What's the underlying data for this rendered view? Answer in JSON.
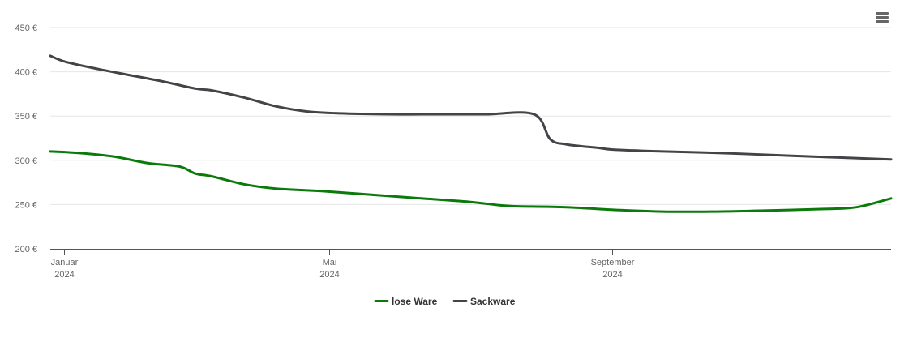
{
  "menu": {
    "icon": "hamburger-menu-icon"
  },
  "chart_data": {
    "type": "line",
    "title": "",
    "xlabel": "",
    "ylabel": "",
    "x_range": [
      "2024-01-01",
      "2024-12-31"
    ],
    "ylim": [
      200,
      450
    ],
    "y_ticks": [
      {
        "value": 200,
        "label": "200 €"
      },
      {
        "value": 250,
        "label": "250 €"
      },
      {
        "value": 300,
        "label": "300 €"
      },
      {
        "value": 350,
        "label": "350 €"
      },
      {
        "value": 400,
        "label": "400 €"
      },
      {
        "value": 450,
        "label": "450 €"
      }
    ],
    "x_ticks": [
      {
        "date": "2024-01-07",
        "month": "Januar",
        "year": "2024"
      },
      {
        "date": "2024-05-01",
        "month": "Mai",
        "year": "2024"
      },
      {
        "date": "2024-09-01",
        "month": "September",
        "year": "2024"
      }
    ],
    "grid": true,
    "legend_position": "bottom-center",
    "series": [
      {
        "name": "lose Ware",
        "color": "#0b7a0b",
        "points": [
          [
            "2024-01-01",
            310
          ],
          [
            "2024-01-15",
            308
          ],
          [
            "2024-01-29",
            304
          ],
          [
            "2024-02-12",
            297
          ],
          [
            "2024-02-26",
            293
          ],
          [
            "2024-03-04",
            285
          ],
          [
            "2024-03-11",
            282
          ],
          [
            "2024-03-25",
            273
          ],
          [
            "2024-04-08",
            268
          ],
          [
            "2024-04-29",
            265
          ],
          [
            "2024-05-20",
            261
          ],
          [
            "2024-06-10",
            257
          ],
          [
            "2024-07-01",
            253
          ],
          [
            "2024-07-15",
            249
          ],
          [
            "2024-07-22",
            248
          ],
          [
            "2024-08-12",
            247
          ],
          [
            "2024-09-02",
            244
          ],
          [
            "2024-09-23",
            242
          ],
          [
            "2024-10-14",
            242
          ],
          [
            "2024-11-04",
            243
          ],
          [
            "2024-12-02",
            245
          ],
          [
            "2024-12-16",
            247
          ],
          [
            "2024-12-31",
            257
          ]
        ]
      },
      {
        "name": "Sackware",
        "color": "#434348",
        "points": [
          [
            "2024-01-01",
            418
          ],
          [
            "2024-01-08",
            411
          ],
          [
            "2024-01-22",
            403
          ],
          [
            "2024-02-05",
            396
          ],
          [
            "2024-02-19",
            389
          ],
          [
            "2024-03-04",
            381
          ],
          [
            "2024-03-11",
            379
          ],
          [
            "2024-03-25",
            371
          ],
          [
            "2024-04-08",
            361
          ],
          [
            "2024-04-22",
            355
          ],
          [
            "2024-05-06",
            353
          ],
          [
            "2024-05-27",
            352
          ],
          [
            "2024-06-17",
            352
          ],
          [
            "2024-07-08",
            352
          ],
          [
            "2024-07-29",
            352
          ],
          [
            "2024-08-05",
            324
          ],
          [
            "2024-08-12",
            318
          ],
          [
            "2024-08-26",
            314
          ],
          [
            "2024-09-02",
            312
          ],
          [
            "2024-09-23",
            310
          ],
          [
            "2024-10-21",
            308
          ],
          [
            "2024-11-18",
            305
          ],
          [
            "2024-12-31",
            301
          ]
        ]
      }
    ]
  }
}
